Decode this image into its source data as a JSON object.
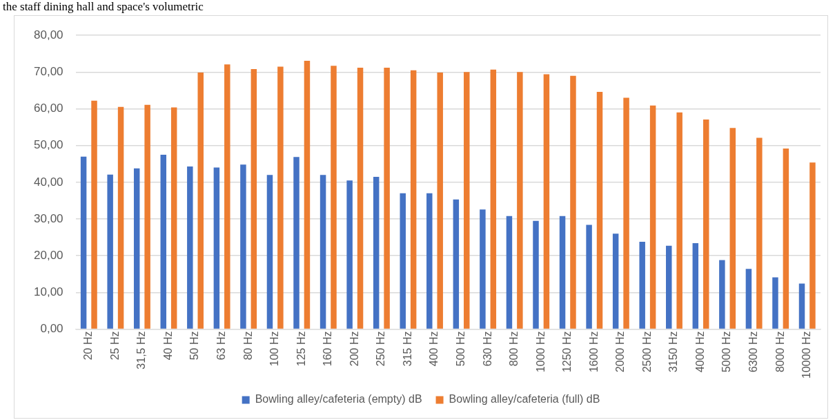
{
  "chart_data": {
    "type": "bar",
    "title": "the staff dining hall and space's volumetric",
    "categories": [
      "20 Hz",
      "25 Hz",
      "31,5 Hz",
      "40 Hz",
      "50 Hz",
      "63 Hz",
      "80 Hz",
      "100 Hz",
      "125 Hz",
      "160 Hz",
      "200 Hz",
      "250 Hz",
      "315 Hz",
      "400 Hz",
      "500 Hz",
      "630 Hz",
      "800 Hz",
      "1000 Hz",
      "1250 Hz",
      "1600 Hz",
      "2000 Hz",
      "2500 Hz",
      "3150 Hz",
      "4000 Hz",
      "5000 Hz",
      "6300 Hz",
      "8000 Hz",
      "10000 Hz"
    ],
    "series": [
      {
        "name": "Bowling alley/cafeteria (empty) dB",
        "color": "#4472c4",
        "values": [
          47.0,
          42.1,
          43.8,
          47.5,
          44.3,
          44.0,
          44.8,
          42.0,
          46.9,
          42.0,
          40.5,
          41.5,
          37.0,
          37.0,
          35.3,
          32.6,
          30.8,
          29.5,
          30.8,
          28.4,
          26.0,
          23.8,
          22.7,
          23.4,
          18.8,
          16.4,
          14.1,
          12.4
        ]
      },
      {
        "name": "Bowling alley/cafeteria (full) dB",
        "color": "#ed7d31",
        "values": [
          62.2,
          60.5,
          61.1,
          60.4,
          69.9,
          72.1,
          70.8,
          71.5,
          73.1,
          71.7,
          71.2,
          71.2,
          70.5,
          69.9,
          70.0,
          70.7,
          70.0,
          69.4,
          69.0,
          64.6,
          63.0,
          60.9,
          59.0,
          57.1,
          54.8,
          52.1,
          49.2,
          45.4
        ]
      }
    ],
    "ylim": [
      0,
      80
    ],
    "yticks": [
      {
        "value": 0,
        "label": "0,00"
      },
      {
        "value": 10,
        "label": "10,00"
      },
      {
        "value": 20,
        "label": "20,00"
      },
      {
        "value": 30,
        "label": "30,00"
      },
      {
        "value": 40,
        "label": "40,00"
      },
      {
        "value": 50,
        "label": "50,00"
      },
      {
        "value": 60,
        "label": "60,00"
      },
      {
        "value": 70,
        "label": "70,00"
      },
      {
        "value": 80,
        "label": "80,00"
      }
    ],
    "grid": "y",
    "legend": "bottom"
  }
}
